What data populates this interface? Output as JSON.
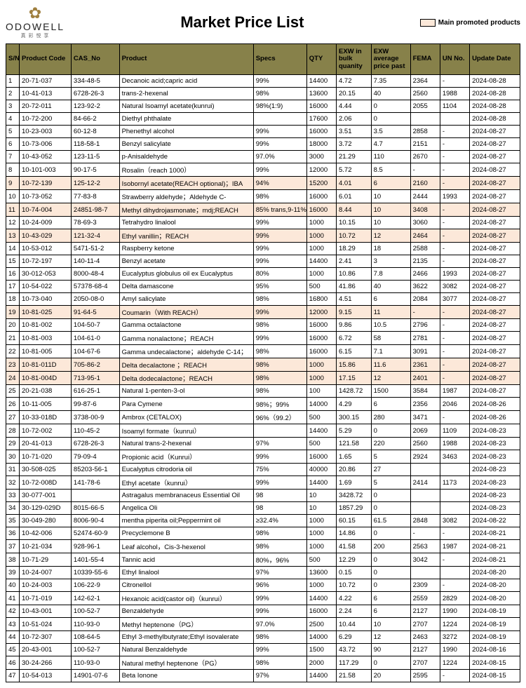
{
  "brand": {
    "name": "ODOWELL",
    "sub": "真 彩 悦 享"
  },
  "title": "Market Price List",
  "legend": {
    "label": "Main promoted products",
    "swatch_color": "#fce8d9"
  },
  "colors": {
    "header_bg": "#87814a",
    "highlight_bg": "#fce8d9",
    "border": "#000000"
  },
  "columns": [
    {
      "key": "sn",
      "label": "S/N"
    },
    {
      "key": "code",
      "label": "Product Code"
    },
    {
      "key": "cas",
      "label": "CAS_No"
    },
    {
      "key": "product",
      "label": "Product"
    },
    {
      "key": "specs",
      "label": "Specs"
    },
    {
      "key": "qty",
      "label": "QTY"
    },
    {
      "key": "exw_bulk",
      "label": "EXW in bulk quanity"
    },
    {
      "key": "exw_avg",
      "label": "EXW average price past"
    },
    {
      "key": "fema",
      "label": "FEMA"
    },
    {
      "key": "un",
      "label": "UN No."
    },
    {
      "key": "date",
      "label": "Update Date"
    }
  ],
  "rows": [
    {
      "sn": "1",
      "code": "20-71-037",
      "cas": "334-48-5",
      "product": "Decanoic acid;capric acid",
      "specs": "99%",
      "qty": "14400",
      "bulk": "4.72",
      "avg": "7.35",
      "fema": "2364",
      "un": "-",
      "date": "2024-08-28",
      "hl": false
    },
    {
      "sn": "2",
      "code": "10-41-013",
      "cas": "6728-26-3",
      "product": "trans-2-hexenal",
      "specs": "98%",
      "qty": "13600",
      "bulk": "20.15",
      "avg": "40",
      "fema": "2560",
      "un": "1988",
      "date": "2024-08-28",
      "hl": false
    },
    {
      "sn": "3",
      "code": "20-72-011",
      "cas": "123-92-2",
      "product": "Natural Isoamyl acetate(kunrui)",
      "specs": "98%(1:9)",
      "qty": "16000",
      "bulk": "4.44",
      "avg": "0",
      "fema": "2055",
      "un": "1104",
      "date": "2024-08-28",
      "hl": false
    },
    {
      "sn": "4",
      "code": "10-72-200",
      "cas": "84-66-2",
      "product": "Diethyl phthalate",
      "specs": "",
      "qty": "17600",
      "bulk": "2.06",
      "avg": "0",
      "fema": "",
      "un": "",
      "date": "2024-08-28",
      "hl": false
    },
    {
      "sn": "5",
      "code": "10-23-003",
      "cas": "60-12-8",
      "product": "Phenethyl alcohol",
      "specs": "99%",
      "qty": "16000",
      "bulk": "3.51",
      "avg": "3.5",
      "fema": "2858",
      "un": "-",
      "date": "2024-08-27",
      "hl": false
    },
    {
      "sn": "6",
      "code": "10-73-006",
      "cas": "118-58-1",
      "product": "Benzyl salicylate",
      "specs": "99%",
      "qty": "18000",
      "bulk": "3.72",
      "avg": "4.7",
      "fema": "2151",
      "un": "-",
      "date": "2024-08-27",
      "hl": false
    },
    {
      "sn": "7",
      "code": "10-43-052",
      "cas": "123-11-5",
      "product": "p-Anisaldehyde",
      "specs": "97.0%",
      "qty": "3000",
      "bulk": "21.29",
      "avg": "110",
      "fema": "2670",
      "un": "-",
      "date": "2024-08-27",
      "hl": false
    },
    {
      "sn": "8",
      "code": "10-101-003",
      "cas": "90-17-5",
      "product": "Rosalin（reach 1000）",
      "specs": "99%",
      "qty": "12000",
      "bulk": "5.72",
      "avg": "8.5",
      "fema": "-",
      "un": "-",
      "date": "2024-08-27",
      "hl": false
    },
    {
      "sn": "9",
      "code": "10-72-139",
      "cas": "125-12-2",
      "product": "Isobornyl acetate(REACH optional)；IBA",
      "specs": "94%",
      "qty": "15200",
      "bulk": "4.01",
      "avg": "6",
      "fema": "2160",
      "un": "-",
      "date": "2024-08-27",
      "hl": true
    },
    {
      "sn": "10",
      "code": "10-73-052",
      "cas": "77-83-8",
      "product": "Strawberry aldehyde；Aldehyde C-",
      "specs": "98%",
      "qty": "16000",
      "bulk": "6.01",
      "avg": "10",
      "fema": "2444",
      "un": "1993",
      "date": "2024-08-27",
      "hl": false
    },
    {
      "sn": "11",
      "code": "10-74-004",
      "cas": "24851-98-7",
      "product": "Methyl dihydrojasmonate；mdj;REACH",
      "specs": "85% trans,9-11%",
      "qty": "16000",
      "bulk": "8.44",
      "avg": "10",
      "fema": "3408",
      "un": "-",
      "date": "2024-08-27",
      "hl": true
    },
    {
      "sn": "12",
      "code": "10-24-009",
      "cas": "78-69-3",
      "product": "Tetrahydro linalool",
      "specs": "99%",
      "qty": "1000",
      "bulk": "10.15",
      "avg": "10",
      "fema": "3060",
      "un": "-",
      "date": "2024-08-27",
      "hl": false
    },
    {
      "sn": "13",
      "code": "10-43-029",
      "cas": "121-32-4",
      "product": "Ethyl vanillin；REACH",
      "specs": "99%",
      "qty": "1000",
      "bulk": "10.72",
      "avg": "12",
      "fema": "2464",
      "un": "-",
      "date": "2024-08-27",
      "hl": true
    },
    {
      "sn": "14",
      "code": "10-53-012",
      "cas": "5471-51-2",
      "product": "Raspberry ketone",
      "specs": "99%",
      "qty": "1000",
      "bulk": "18.29",
      "avg": "18",
      "fema": "2588",
      "un": "-",
      "date": "2024-08-27",
      "hl": false
    },
    {
      "sn": "15",
      "code": "10-72-197",
      "cas": "140-11-4",
      "product": "Benzyl acetate",
      "specs": "99%",
      "qty": "14400",
      "bulk": "2.41",
      "avg": "3",
      "fema": "2135",
      "un": "-",
      "date": "2024-08-27",
      "hl": false
    },
    {
      "sn": "16",
      "code": "30-012-053",
      "cas": "8000-48-4",
      "product": "Eucalyptus globulus oil ex Eucalyptus",
      "specs": "80%",
      "qty": "1000",
      "bulk": "10.86",
      "avg": "7.8",
      "fema": "2466",
      "un": "1993",
      "date": "2024-08-27",
      "hl": false
    },
    {
      "sn": "17",
      "code": "10-54-022",
      "cas": "57378-68-4",
      "product": "Delta damascone",
      "specs": "95%",
      "qty": "500",
      "bulk": "41.86",
      "avg": "40",
      "fema": "3622",
      "un": "3082",
      "date": "2024-08-27",
      "hl": false
    },
    {
      "sn": "18",
      "code": "10-73-040",
      "cas": "2050-08-0",
      "product": "Amyl salicylate",
      "specs": "98%",
      "qty": "16800",
      "bulk": "4.51",
      "avg": "6",
      "fema": "2084",
      "un": "3077",
      "date": "2024-08-27",
      "hl": false
    },
    {
      "sn": "19",
      "code": "10-81-025",
      "cas": "91-64-5",
      "product": "Coumarin（With REACH）",
      "specs": "99%",
      "qty": "12000",
      "bulk": "9.15",
      "avg": "11",
      "fema": "-",
      "un": "-",
      "date": "2024-08-27",
      "hl": true
    },
    {
      "sn": "20",
      "code": "10-81-002",
      "cas": "104-50-7",
      "product": "Gamma octalactone",
      "specs": "98%",
      "qty": "16000",
      "bulk": "9.86",
      "avg": "10.5",
      "fema": "2796",
      "un": "-",
      "date": "2024-08-27",
      "hl": false
    },
    {
      "sn": "21",
      "code": "10-81-003",
      "cas": "104-61-0",
      "product": "Gamma nonalactone；REACH",
      "specs": "99%",
      "qty": "16000",
      "bulk": "6.72",
      "avg": "58",
      "fema": "2781",
      "un": "-",
      "date": "2024-08-27",
      "hl": false
    },
    {
      "sn": "22",
      "code": "10-81-005",
      "cas": "104-67-6",
      "product": "Gamma undecalactone；aldehyde C-14；",
      "specs": "98%",
      "qty": "16000",
      "bulk": "6.15",
      "avg": "7.1",
      "fema": "3091",
      "un": "-",
      "date": "2024-08-27",
      "hl": false
    },
    {
      "sn": "23",
      "code": "10-81-011D",
      "cas": "705-86-2",
      "product": "Delta decalactone ；REACH",
      "specs": "98%",
      "qty": "1000",
      "bulk": "15.86",
      "avg": "11.6",
      "fema": "2361",
      "un": "-",
      "date": "2024-08-27",
      "hl": true
    },
    {
      "sn": "24",
      "code": "10-81-004D",
      "cas": "713-95-1",
      "product": "Delta dodecalactone；REACH",
      "specs": "98%",
      "qty": "1000",
      "bulk": "17.15",
      "avg": "12",
      "fema": "2401",
      "un": "-",
      "date": "2024-08-27",
      "hl": true
    },
    {
      "sn": "25",
      "code": "20-21-038",
      "cas": "616-25-1",
      "product": "Natural 1-penten-3-ol",
      "specs": "98%",
      "qty": "100",
      "bulk": "1428.72",
      "avg": "1500",
      "fema": "3584",
      "un": "1987",
      "date": "2024-08-27",
      "hl": false
    },
    {
      "sn": "26",
      "code": "10-11-005",
      "cas": "99-87-6",
      "product": "Para Cymene",
      "specs": "98%；99%",
      "qty": "14000",
      "bulk": "4.29",
      "avg": "6",
      "fema": "2356",
      "un": "2046",
      "date": "2024-08-26",
      "hl": false
    },
    {
      "sn": "27",
      "code": "10-33-018D",
      "cas": "3738-00-9",
      "product": "Ambrox (CETALOX)",
      "specs": "96%（99.2）",
      "qty": "500",
      "bulk": "300.15",
      "avg": "280",
      "fema": "3471",
      "un": "-",
      "date": "2024-08-26",
      "hl": false
    },
    {
      "sn": "28",
      "code": "10-72-002",
      "cas": "110-45-2",
      "product": "Isoamyl formate（kunrui）",
      "specs": "",
      "qty": "14400",
      "bulk": "5.29",
      "avg": "0",
      "fema": "2069",
      "un": "1109",
      "date": "2024-08-23",
      "hl": false
    },
    {
      "sn": "29",
      "code": "20-41-013",
      "cas": "6728-26-3",
      "product": "Natural trans-2-hexenal",
      "specs": "97%",
      "qty": "500",
      "bulk": "121.58",
      "avg": "220",
      "fema": "2560",
      "un": "1988",
      "date": "2024-08-23",
      "hl": false
    },
    {
      "sn": "30",
      "code": "10-71-020",
      "cas": "79-09-4",
      "product": "Propionic acid（Kunrui）",
      "specs": "99%",
      "qty": "16000",
      "bulk": "1.65",
      "avg": "5",
      "fema": "2924",
      "un": "3463",
      "date": "2024-08-23",
      "hl": false
    },
    {
      "sn": "31",
      "code": "30-508-025",
      "cas": "85203-56-1",
      "product": "Eucalyptus citrodoria oil",
      "specs": "75%",
      "qty": "40000",
      "bulk": "20.86",
      "avg": "27",
      "fema": "",
      "un": "",
      "date": "2024-08-23",
      "hl": false
    },
    {
      "sn": "32",
      "code": "10-72-008D",
      "cas": "141-78-6",
      "product": "Ethyl acetate（kunrui）",
      "specs": "99%",
      "qty": "14400",
      "bulk": "1.69",
      "avg": "5",
      "fema": "2414",
      "un": "1173",
      "date": "2024-08-23",
      "hl": false
    },
    {
      "sn": "33",
      "code": "30-077-001",
      "cas": "",
      "product": "Astragalus membranaceus Essential Oil",
      "specs": "98",
      "qty": "10",
      "bulk": "3428.72",
      "avg": "0",
      "fema": "",
      "un": "",
      "date": "2024-08-23",
      "hl": false
    },
    {
      "sn": "34",
      "code": "30-129-029D",
      "cas": "8015-66-5",
      "product": "Angelica Oli",
      "specs": "98",
      "qty": "10",
      "bulk": "1857.29",
      "avg": "0",
      "fema": "",
      "un": "",
      "date": "2024-08-23",
      "hl": false
    },
    {
      "sn": "35",
      "code": "30-049-280",
      "cas": "8006-90-4",
      "product": "mentha piperita oil;Peppermint oil",
      "specs": "≥32.4%",
      "qty": "1000",
      "bulk": "60.15",
      "avg": "61.5",
      "fema": "2848",
      "un": "3082",
      "date": "2024-08-22",
      "hl": false
    },
    {
      "sn": "36",
      "code": "10-42-006",
      "cas": "52474-60-9",
      "product": "Precyclemone B",
      "specs": "98%",
      "qty": "1000",
      "bulk": "14.86",
      "avg": "0",
      "fema": "-",
      "un": "-",
      "date": "2024-08-21",
      "hl": false
    },
    {
      "sn": "37",
      "code": "10-21-034",
      "cas": "928-96-1",
      "product": "Leaf alcohol，Cis-3-hexenol",
      "specs": "98%",
      "qty": "1000",
      "bulk": "41.58",
      "avg": "200",
      "fema": "2563",
      "un": "1987",
      "date": "2024-08-21",
      "hl": false
    },
    {
      "sn": "38",
      "code": "10-71-29",
      "cas": "1401-55-4",
      "product": "Tannic acid",
      "specs": "80%，96%",
      "qty": "500",
      "bulk": "12.29",
      "avg": "0",
      "fema": "3042",
      "un": "-",
      "date": "2024-08-21",
      "hl": false
    },
    {
      "sn": "39",
      "code": "10-24-007",
      "cas": "10339-55-6",
      "product": "Ethyl linalool",
      "specs": "97%",
      "qty": "13600",
      "bulk": "0.15",
      "avg": "0",
      "fema": "",
      "un": "",
      "date": "2024-08-20",
      "hl": false
    },
    {
      "sn": "40",
      "code": "10-24-003",
      "cas": "106-22-9",
      "product": "Citronellol",
      "specs": "96%",
      "qty": "1000",
      "bulk": "10.72",
      "avg": "0",
      "fema": "2309",
      "un": "-",
      "date": "2024-08-20",
      "hl": false
    },
    {
      "sn": "41",
      "code": "10-71-019",
      "cas": "142-62-1",
      "product": "Hexanoic acid(castor oil)（kunrui）",
      "specs": "99%",
      "qty": "14400",
      "bulk": "4.22",
      "avg": "6",
      "fema": "2559",
      "un": "2829",
      "date": "2024-08-20",
      "hl": false
    },
    {
      "sn": "42",
      "code": "10-43-001",
      "cas": "100-52-7",
      "product": "Benzaldehyde",
      "specs": "99%",
      "qty": "16000",
      "bulk": "2.24",
      "avg": "6",
      "fema": "2127",
      "un": "1990",
      "date": "2024-08-19",
      "hl": false
    },
    {
      "sn": "43",
      "code": "10-51-024",
      "cas": "110-93-0",
      "product": "Methyl heptenone（PG）",
      "specs": "97.0%",
      "qty": "2500",
      "bulk": "10.44",
      "avg": "10",
      "fema": "2707",
      "un": "1224",
      "date": "2024-08-19",
      "hl": false
    },
    {
      "sn": "44",
      "code": "10-72-307",
      "cas": "108-64-5",
      "product": "Ethyl 3-methylbutyrate;Ethyl isovalerate",
      "specs": "98%",
      "qty": "14000",
      "bulk": "6.29",
      "avg": "12",
      "fema": "2463",
      "un": "3272",
      "date": "2024-08-19",
      "hl": false
    },
    {
      "sn": "45",
      "code": "20-43-001",
      "cas": "100-52-7",
      "product": "Natural Benzaldehyde",
      "specs": "99%",
      "qty": "1500",
      "bulk": "43.72",
      "avg": "90",
      "fema": "2127",
      "un": "1990",
      "date": "2024-08-16",
      "hl": false
    },
    {
      "sn": "46",
      "code": "30-24-266",
      "cas": "110-93-0",
      "product": "Natural methyl heptenone（PG）",
      "specs": "98%",
      "qty": "2000",
      "bulk": "117.29",
      "avg": "0",
      "fema": "2707",
      "un": "1224",
      "date": "2024-08-15",
      "hl": false
    },
    {
      "sn": "47",
      "code": "10-54-013",
      "cas": "14901-07-6",
      "product": "Beta Ionone",
      "specs": "97%",
      "qty": "14400",
      "bulk": "21.58",
      "avg": "20",
      "fema": "2595",
      "un": "-",
      "date": "2024-08-15",
      "hl": false
    }
  ]
}
